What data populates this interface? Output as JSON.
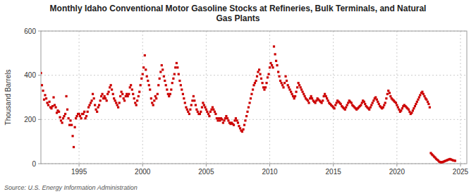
{
  "chart_data": {
    "type": "scatter",
    "title": "Monthly Idaho Conventional Motor Gasoline Stocks at Refineries, Bulk Terminals, and Natural\nGas Plants",
    "y_label": "Thousand Barrels",
    "source": "Source: U.S. Energy Information Administration",
    "color": "#CC0000",
    "marker": "square",
    "grid": true,
    "xlim": [
      1992.0,
      2025.5
    ],
    "xticks": [
      1995,
      2000,
      2005,
      2010,
      2015,
      2020,
      2025
    ],
    "ylim": [
      0,
      600
    ],
    "yticks": [
      0,
      200,
      400,
      600
    ],
    "x": [
      1992.0,
      1992.08,
      1992.17,
      1992.25,
      1992.33,
      1992.42,
      1992.5,
      1992.58,
      1992.67,
      1992.75,
      1992.83,
      1992.92,
      1993.0,
      1993.08,
      1993.17,
      1993.25,
      1993.33,
      1993.42,
      1993.5,
      1993.58,
      1993.67,
      1993.75,
      1993.83,
      1993.92,
      1994.0,
      1994.08,
      1994.17,
      1994.25,
      1994.33,
      1994.42,
      1994.5,
      1994.58,
      1994.67,
      1994.75,
      1994.83,
      1994.92,
      1995.0,
      1995.08,
      1995.17,
      1995.25,
      1995.33,
      1995.42,
      1995.5,
      1995.58,
      1995.67,
      1995.75,
      1995.83,
      1995.92,
      1996.0,
      1996.08,
      1996.17,
      1996.25,
      1996.33,
      1996.42,
      1996.5,
      1996.58,
      1996.67,
      1996.75,
      1996.83,
      1996.92,
      1997.0,
      1997.08,
      1997.17,
      1997.25,
      1997.33,
      1997.42,
      1997.5,
      1997.58,
      1997.67,
      1997.75,
      1997.83,
      1997.92,
      1998.0,
      1998.08,
      1998.17,
      1998.25,
      1998.33,
      1998.42,
      1998.5,
      1998.58,
      1998.67,
      1998.75,
      1998.83,
      1998.92,
      1999.0,
      1999.08,
      1999.17,
      1999.25,
      1999.33,
      1999.42,
      1999.5,
      1999.58,
      1999.67,
      1999.75,
      1999.83,
      1999.92,
      2000.0,
      2000.08,
      2000.17,
      2000.25,
      2000.33,
      2000.42,
      2000.5,
      2000.58,
      2000.67,
      2000.75,
      2000.83,
      2000.92,
      2001.0,
      2001.08,
      2001.17,
      2001.25,
      2001.33,
      2001.42,
      2001.5,
      2001.58,
      2001.67,
      2001.75,
      2001.83,
      2001.92,
      2002.0,
      2002.08,
      2002.17,
      2002.25,
      2002.33,
      2002.42,
      2002.5,
      2002.58,
      2002.67,
      2002.75,
      2002.83,
      2002.92,
      2003.0,
      2003.08,
      2003.17,
      2003.25,
      2003.33,
      2003.42,
      2003.5,
      2003.58,
      2003.67,
      2003.75,
      2003.83,
      2003.92,
      2004.0,
      2004.08,
      2004.17,
      2004.25,
      2004.33,
      2004.42,
      2004.5,
      2004.58,
      2004.67,
      2004.75,
      2004.83,
      2004.92,
      2005.0,
      2005.08,
      2005.17,
      2005.25,
      2005.33,
      2005.42,
      2005.5,
      2005.58,
      2005.67,
      2005.75,
      2005.83,
      2005.92,
      2006.0,
      2006.08,
      2006.17,
      2006.25,
      2006.33,
      2006.42,
      2006.5,
      2006.58,
      2006.67,
      2006.75,
      2006.83,
      2006.92,
      2007.0,
      2007.08,
      2007.17,
      2007.25,
      2007.33,
      2007.42,
      2007.5,
      2007.58,
      2007.67,
      2007.75,
      2007.83,
      2007.92,
      2008.0,
      2008.08,
      2008.17,
      2008.25,
      2008.33,
      2008.42,
      2008.5,
      2008.58,
      2008.67,
      2008.75,
      2008.83,
      2008.92,
      2009.0,
      2009.08,
      2009.17,
      2009.25,
      2009.33,
      2009.42,
      2009.5,
      2009.58,
      2009.67,
      2009.75,
      2009.83,
      2009.92,
      2010.0,
      2010.08,
      2010.17,
      2010.25,
      2010.33,
      2010.42,
      2010.5,
      2010.58,
      2010.67,
      2010.75,
      2010.83,
      2010.92,
      2011.0,
      2011.08,
      2011.17,
      2011.25,
      2011.33,
      2011.42,
      2011.5,
      2011.58,
      2011.67,
      2011.75,
      2011.83,
      2011.92,
      2012.0,
      2012.08,
      2012.17,
      2012.25,
      2012.33,
      2012.42,
      2012.5,
      2012.58,
      2012.67,
      2012.75,
      2012.83,
      2012.92,
      2013.0,
      2013.08,
      2013.17,
      2013.25,
      2013.33,
      2013.42,
      2013.5,
      2013.58,
      2013.67,
      2013.75,
      2013.83,
      2013.92,
      2014.0,
      2014.08,
      2014.17,
      2014.25,
      2014.33,
      2014.42,
      2014.5,
      2014.58,
      2014.67,
      2014.75,
      2014.83,
      2014.92,
      2015.0,
      2015.08,
      2015.17,
      2015.25,
      2015.33,
      2015.42,
      2015.5,
      2015.58,
      2015.67,
      2015.75,
      2015.83,
      2015.92,
      2016.0,
      2016.08,
      2016.17,
      2016.25,
      2016.33,
      2016.42,
      2016.5,
      2016.58,
      2016.67,
      2016.75,
      2016.83,
      2016.92,
      2017.0,
      2017.08,
      2017.17,
      2017.25,
      2017.33,
      2017.42,
      2017.5,
      2017.58,
      2017.67,
      2017.75,
      2017.83,
      2017.92,
      2018.0,
      2018.08,
      2018.17,
      2018.25,
      2018.33,
      2018.42,
      2018.5,
      2018.58,
      2018.67,
      2018.75,
      2018.83,
      2018.92,
      2019.0,
      2019.08,
      2019.17,
      2019.25,
      2019.33,
      2019.42,
      2019.5,
      2019.58,
      2019.67,
      2019.75,
      2019.83,
      2019.92,
      2020.0,
      2020.08,
      2020.17,
      2020.25,
      2020.33,
      2020.42,
      2020.5,
      2020.58,
      2020.67,
      2020.75,
      2020.83,
      2020.92,
      2021.0,
      2021.08,
      2021.17,
      2021.25,
      2021.33,
      2021.42,
      2021.5,
      2021.58,
      2021.67,
      2021.75,
      2021.83,
      2021.92,
      2022.0,
      2022.08,
      2022.17,
      2022.25,
      2022.33,
      2022.42,
      2022.5,
      2022.58,
      2022.67,
      2022.75,
      2022.83,
      2022.92,
      2023.0,
      2023.08,
      2023.17,
      2023.25,
      2023.33,
      2023.42,
      2023.5,
      2023.58,
      2023.67,
      2023.75,
      2023.83,
      2023.92,
      2024.0,
      2024.08,
      2024.17,
      2024.25,
      2024.33,
      2024.42,
      2024.5,
      2024.58
    ],
    "values": [
      410,
      355,
      330,
      290,
      310,
      295,
      275,
      265,
      280,
      255,
      250,
      260,
      300,
      265,
      255,
      230,
      240,
      235,
      210,
      195,
      185,
      205,
      215,
      225,
      305,
      245,
      205,
      175,
      195,
      175,
      125,
      75,
      165,
      205,
      215,
      225,
      225,
      215,
      205,
      225,
      225,
      235,
      205,
      215,
      235,
      255,
      265,
      275,
      285,
      315,
      295,
      265,
      245,
      235,
      255,
      265,
      285,
      305,
      315,
      295,
      305,
      295,
      285,
      315,
      325,
      345,
      355,
      335,
      315,
      295,
      285,
      275,
      265,
      255,
      275,
      305,
      325,
      315,
      295,
      285,
      305,
      315,
      305,
      315,
      345,
      355,
      335,
      315,
      295,
      275,
      265,
      285,
      305,
      325,
      355,
      385,
      405,
      435,
      490,
      425,
      395,
      375,
      355,
      335,
      295,
      275,
      265,
      285,
      305,
      295,
      315,
      355,
      385,
      415,
      445,
      425,
      395,
      375,
      355,
      335,
      315,
      305,
      315,
      335,
      365,
      385,
      405,
      435,
      455,
      435,
      405,
      375,
      355,
      335,
      315,
      295,
      275,
      255,
      245,
      235,
      225,
      245,
      265,
      285,
      305,
      285,
      265,
      245,
      235,
      225,
      225,
      235,
      255,
      275,
      265,
      255,
      245,
      235,
      225,
      215,
      235,
      245,
      255,
      245,
      235,
      225,
      205,
      195,
      205,
      195,
      205,
      200,
      185,
      195,
      205,
      215,
      205,
      195,
      185,
      180,
      185,
      180,
      175,
      195,
      205,
      195,
      185,
      170,
      160,
      150,
      145,
      155,
      175,
      195,
      215,
      235,
      255,
      275,
      295,
      315,
      335,
      355,
      365,
      375,
      395,
      415,
      425,
      405,
      385,
      365,
      345,
      335,
      345,
      365,
      390,
      405,
      435,
      455,
      445,
      435,
      530,
      495,
      465,
      445,
      415,
      395,
      375,
      365,
      355,
      345,
      365,
      395,
      375,
      355,
      345,
      335,
      325,
      315,
      305,
      295,
      305,
      325,
      345,
      365,
      355,
      345,
      335,
      325,
      315,
      305,
      295,
      290,
      285,
      275,
      295,
      305,
      295,
      285,
      280,
      275,
      285,
      295,
      290,
      285,
      280,
      275,
      285,
      305,
      315,
      305,
      295,
      285,
      275,
      270,
      265,
      260,
      255,
      250,
      265,
      275,
      285,
      280,
      275,
      270,
      260,
      255,
      250,
      245,
      255,
      265,
      275,
      285,
      280,
      275,
      265,
      260,
      255,
      250,
      245,
      250,
      255,
      260,
      265,
      275,
      285,
      280,
      270,
      260,
      255,
      250,
      245,
      255,
      265,
      275,
      285,
      295,
      300,
      290,
      280,
      270,
      260,
      255,
      250,
      255,
      265,
      275,
      295,
      315,
      330,
      320,
      305,
      295,
      290,
      285,
      280,
      275,
      265,
      255,
      245,
      235,
      240,
      250,
      260,
      265,
      260,
      255,
      250,
      245,
      235,
      225,
      230,
      240,
      250,
      260,
      270,
      280,
      290,
      300,
      310,
      320,
      325,
      315,
      305,
      295,
      290,
      280,
      270,
      255,
      48,
      42,
      38,
      32,
      28,
      22,
      18,
      14,
      9,
      7,
      6,
      7,
      9,
      11,
      13,
      15,
      17,
      19,
      21,
      19,
      17,
      15,
      14,
      13
    ]
  }
}
